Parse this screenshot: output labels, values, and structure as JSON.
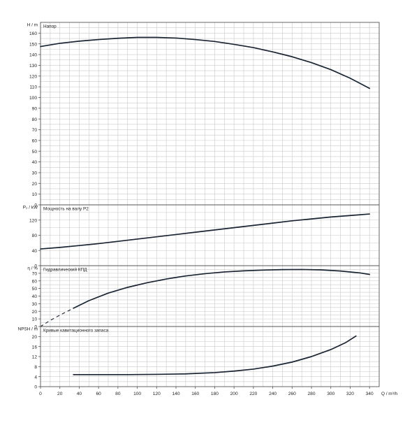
{
  "chart_data": {
    "type": "line",
    "x_axis": {
      "label": "Q / m³/h",
      "range": [
        0,
        350
      ],
      "ticks": [
        0,
        20,
        40,
        60,
        80,
        100,
        120,
        140,
        160,
        180,
        200,
        220,
        240,
        260,
        280,
        300,
        320,
        340
      ]
    },
    "grid": true,
    "line_color": "#1a2433",
    "grid_color": "#c9c9c9",
    "panels": [
      {
        "id": "head",
        "title": "Напор",
        "ylabel": "H / m",
        "ylim": [
          0,
          170
        ],
        "yticks": [
          0,
          10,
          20,
          30,
          40,
          50,
          60,
          70,
          80,
          90,
          100,
          110,
          120,
          130,
          140,
          150,
          160
        ],
        "series": [
          {
            "dashed": false,
            "points": [
              [
                0,
                147.5
              ],
              [
                20,
                150.5
              ],
              [
                40,
                152.5
              ],
              [
                60,
                154
              ],
              [
                80,
                155.2
              ],
              [
                100,
                156
              ],
              [
                120,
                156
              ],
              [
                140,
                155.4
              ],
              [
                160,
                154
              ],
              [
                180,
                152.2
              ],
              [
                200,
                149.5
              ],
              [
                220,
                146.5
              ],
              [
                240,
                142.5
              ],
              [
                260,
                138
              ],
              [
                280,
                132.5
              ],
              [
                300,
                126
              ],
              [
                320,
                118
              ],
              [
                340,
                108.5
              ]
            ]
          }
        ]
      },
      {
        "id": "power",
        "title": "Мощность на валу P2",
        "ylabel": "P₂ / kW",
        "ylim": [
          0,
          160
        ],
        "yticks": [
          0,
          40,
          80,
          120
        ],
        "series": [
          {
            "dashed": false,
            "points": [
              [
                0,
                44
              ],
              [
                20,
                48
              ],
              [
                40,
                53
              ],
              [
                60,
                58
              ],
              [
                80,
                64
              ],
              [
                100,
                70
              ],
              [
                120,
                76
              ],
              [
                140,
                82
              ],
              [
                160,
                88
              ],
              [
                180,
                94
              ],
              [
                200,
                100
              ],
              [
                220,
                106
              ],
              [
                240,
                112
              ],
              [
                260,
                118
              ],
              [
                280,
                123
              ],
              [
                300,
                128
              ],
              [
                320,
                132
              ],
              [
                340,
                136
              ]
            ]
          }
        ]
      },
      {
        "id": "efficiency",
        "title": "Гидравлический КПД",
        "ylabel": "η / %",
        "ylim": [
          0,
          80
        ],
        "yticks": [
          0,
          10,
          20,
          30,
          40,
          50,
          60,
          70
        ],
        "series": [
          {
            "dashed": true,
            "points": [
              [
                0,
                0
              ],
              [
                10,
                8
              ],
              [
                20,
                15
              ],
              [
                34,
                24
              ]
            ]
          },
          {
            "dashed": false,
            "points": [
              [
                34,
                24
              ],
              [
                50,
                34
              ],
              [
                70,
                44
              ],
              [
                90,
                51.5
              ],
              [
                110,
                57.5
              ],
              [
                130,
                62.5
              ],
              [
                150,
                66.5
              ],
              [
                170,
                69.5
              ],
              [
                190,
                71.8
              ],
              [
                210,
                73.2
              ],
              [
                230,
                74.2
              ],
              [
                250,
                74.8
              ],
              [
                270,
                75
              ],
              [
                290,
                74.5
              ],
              [
                310,
                73
              ],
              [
                330,
                70.5
              ],
              [
                340,
                68.5
              ]
            ]
          }
        ]
      },
      {
        "id": "npsh",
        "title": "Кривые кавитационного запаса",
        "ylabel": "NPSH / m",
        "ylim": [
          0,
          24
        ],
        "yticks": [
          0,
          4,
          8,
          12,
          16,
          20
        ],
        "series": [
          {
            "dashed": false,
            "points": [
              [
                34,
                4.8
              ],
              [
                60,
                4.8
              ],
              [
                90,
                4.8
              ],
              [
                120,
                4.9
              ],
              [
                150,
                5.1
              ],
              [
                180,
                5.6
              ],
              [
                200,
                6.2
              ],
              [
                220,
                7.0
              ],
              [
                240,
                8.2
              ],
              [
                260,
                9.8
              ],
              [
                280,
                12.0
              ],
              [
                300,
                14.8
              ],
              [
                315,
                17.5
              ],
              [
                326,
                20.2
              ]
            ]
          }
        ]
      }
    ]
  }
}
